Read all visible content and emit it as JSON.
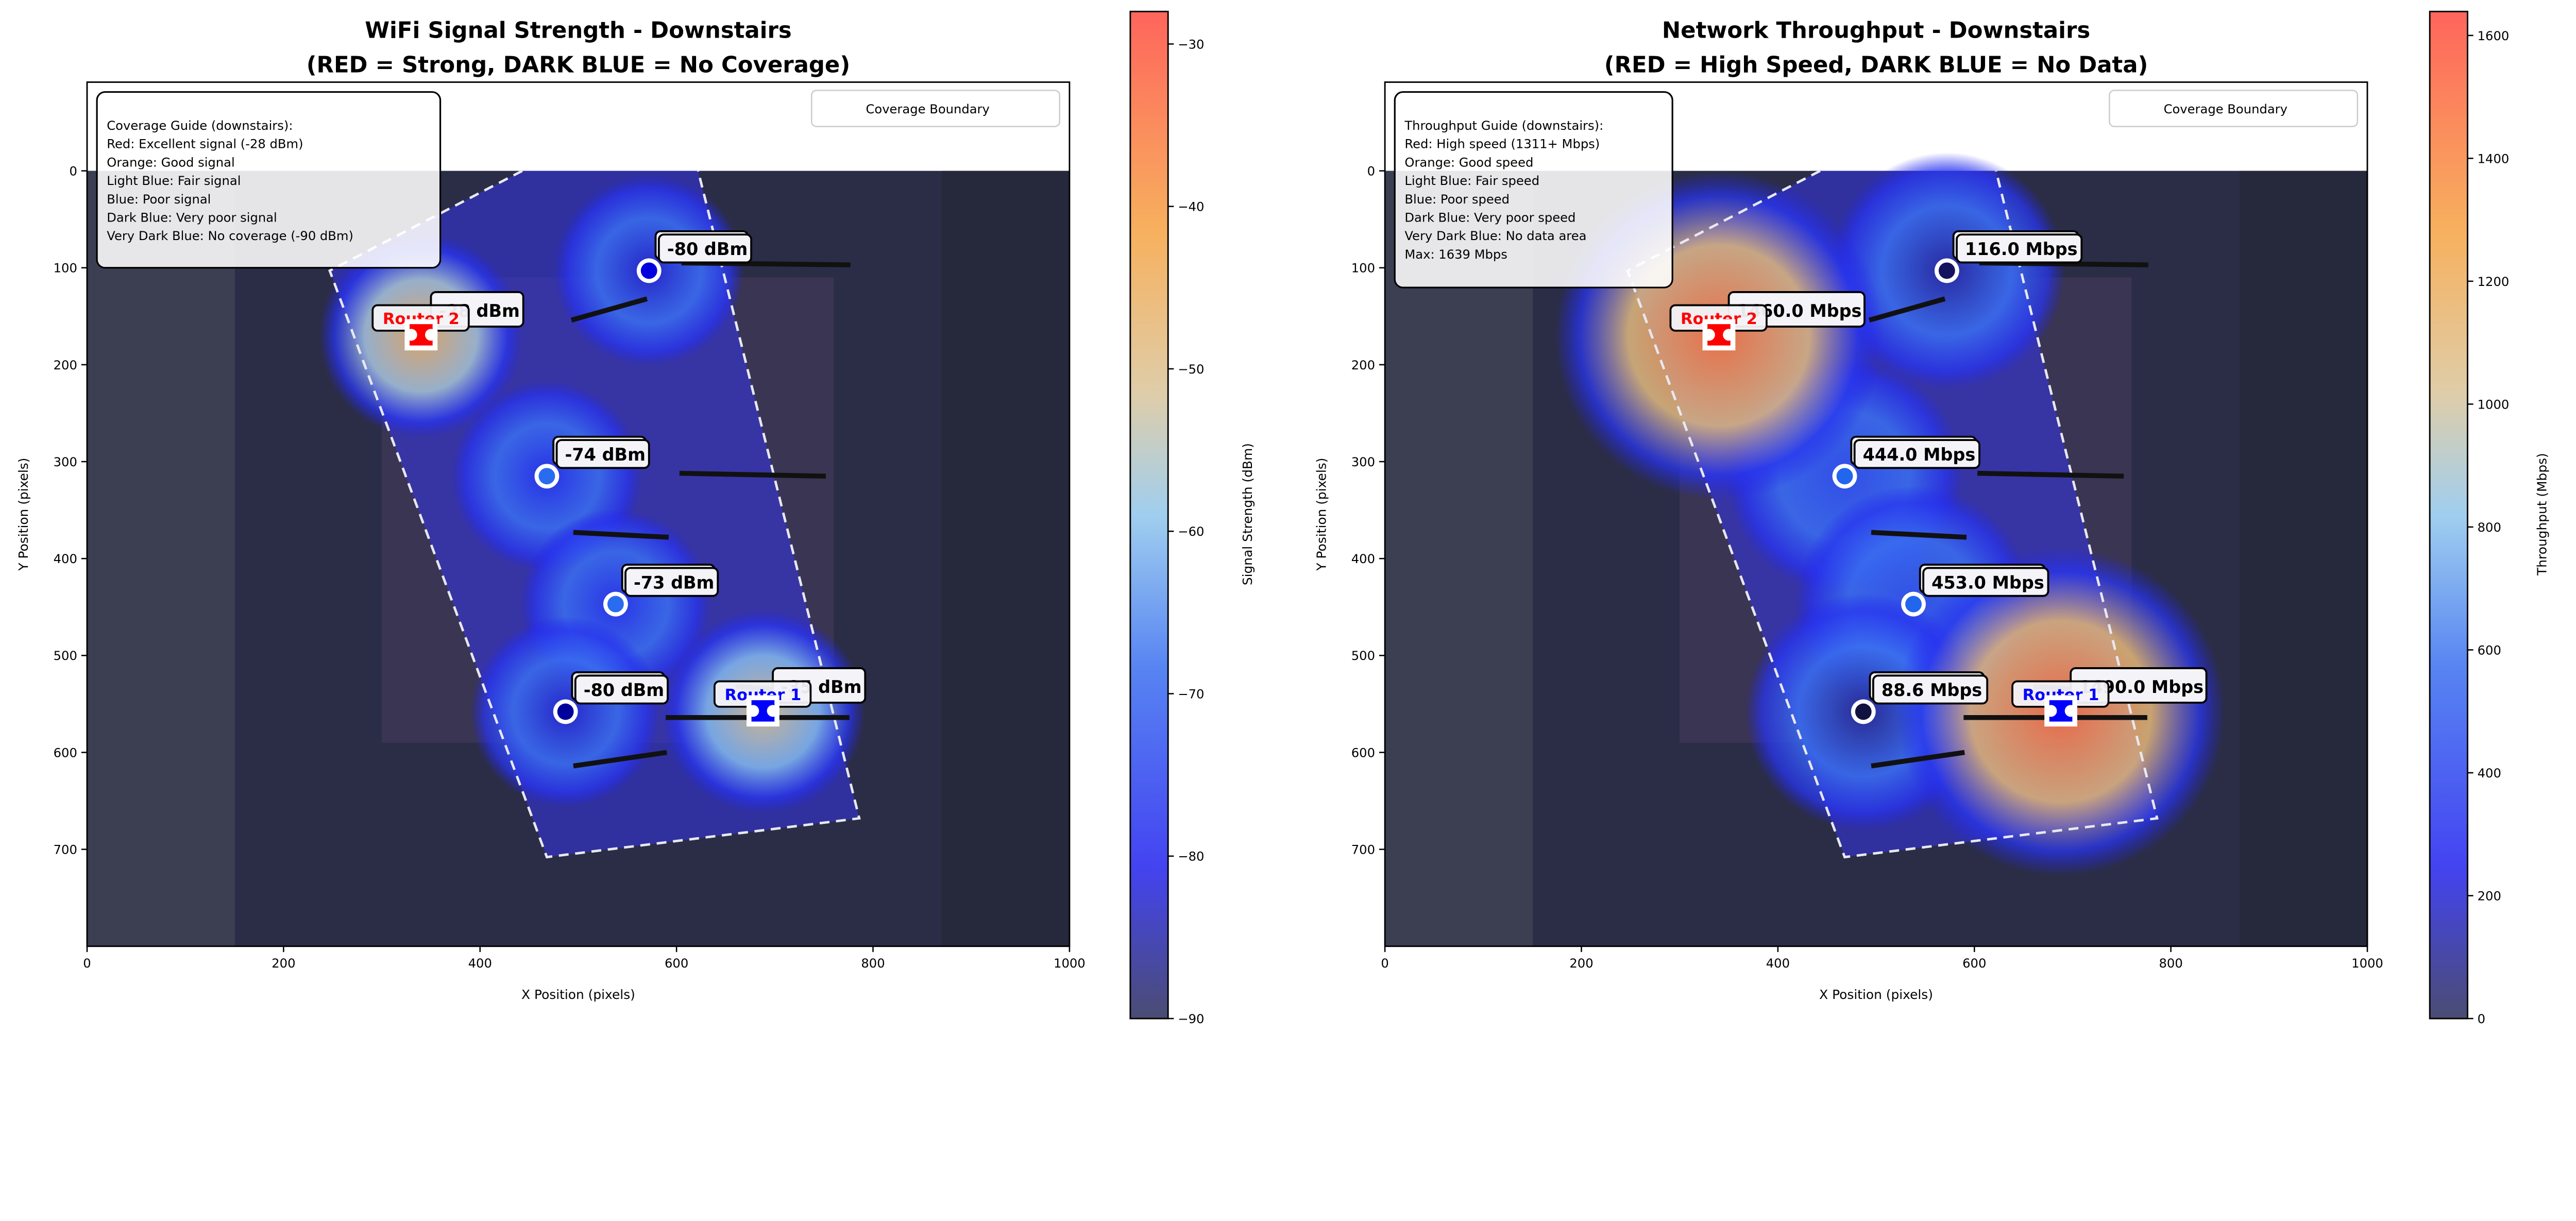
{
  "chart_data": [
    {
      "type": "heatmap",
      "key": "signal",
      "title_line1": "WiFi Signal Strength - Downstairs",
      "title_line2": "(RED = Strong, DARK BLUE = No Coverage)",
      "xlabel": "X Position (pixels)",
      "ylabel": "Y Position (pixels)",
      "xlim": [
        0,
        1000
      ],
      "ylim": [
        800,
        -92
      ],
      "xticks": [
        "0",
        "200",
        "400",
        "600",
        "800",
        "1000"
      ],
      "yticks": [
        "0",
        "100",
        "200",
        "300",
        "400",
        "500",
        "600",
        "700"
      ],
      "colorbar": {
        "label": "Signal Strength (dBm)",
        "range": [
          -90,
          -28
        ],
        "ticks": [
          "-30",
          "-40",
          "-50",
          "-60",
          "-70",
          "-80",
          "-90"
        ]
      },
      "legend": {
        "label": "Coverage Boundary",
        "position": "top-right"
      },
      "guide": [
        "Coverage Guide (downstairs):",
        "Red: Excellent signal (-28 dBm)",
        "Orange: Good signal",
        "Light Blue: Fair signal",
        "Blue: Poor signal",
        "Dark Blue: Very poor signal",
        "Very Dark Blue: No coverage (-90 dBm)"
      ],
      "points": [
        {
          "x": 572,
          "y": 103,
          "value": -80,
          "label": "-80 dBm",
          "color": "#0000dd"
        },
        {
          "x": 468,
          "y": 315,
          "value": -74,
          "label": "-74 dBm",
          "color": "#2a6cf0"
        },
        {
          "x": 538,
          "y": 447,
          "value": -73,
          "label": "-73 dBm",
          "color": "#2a6cf0"
        },
        {
          "x": 487,
          "y": 558,
          "value": -80,
          "label": "-80 dBm",
          "color": "#00009a"
        }
      ],
      "routers": [
        {
          "name": "Router 2",
          "x": 340,
          "y": 170,
          "value": -28,
          "label": "-28 dBm",
          "color": "#ff0000"
        },
        {
          "name": "Router 1",
          "x": 688,
          "y": 558,
          "value": -35,
          "label": "-35 dBm",
          "color": "#0000ff"
        }
      ]
    },
    {
      "type": "heatmap",
      "key": "throughput",
      "title_line1": "Network Throughput - Downstairs",
      "title_line2": "(RED = High Speed, DARK BLUE = No Data)",
      "xlabel": "X Position (pixels)",
      "ylabel": "Y Position (pixels)",
      "xlim": [
        0,
        1000
      ],
      "ylim": [
        800,
        -92
      ],
      "xticks": [
        "0",
        "200",
        "400",
        "600",
        "800",
        "1000"
      ],
      "yticks": [
        "0",
        "100",
        "200",
        "300",
        "400",
        "500",
        "600",
        "700"
      ],
      "colorbar": {
        "label": "Throughput (Mbps)",
        "range": [
          0,
          1639
        ],
        "ticks": [
          "0",
          "200",
          "400",
          "600",
          "800",
          "1000",
          "1200",
          "1400",
          "1600"
        ]
      },
      "legend": {
        "label": "Coverage Boundary",
        "position": "top-right"
      },
      "guide": [
        "Throughput Guide (downstairs):",
        "Red: High speed (1311+ Mbps)",
        "Orange: Good speed",
        "Light Blue: Fair speed",
        "Blue: Poor speed",
        "Dark Blue: Very poor speed",
        "Very Dark Blue: No data area",
        "Max: 1639 Mbps"
      ],
      "points": [
        {
          "x": 572,
          "y": 103,
          "value": 116.0,
          "label": "116.0 Mbps",
          "color": "#14145e"
        },
        {
          "x": 468,
          "y": 315,
          "value": 444.0,
          "label": "444.0 Mbps",
          "color": "#2266ee"
        },
        {
          "x": 538,
          "y": 447,
          "value": 453.0,
          "label": "453.0 Mbps",
          "color": "#2266ee"
        },
        {
          "x": 487,
          "y": 558,
          "value": 88.6,
          "label": "88.6 Mbps",
          "color": "#121240"
        }
      ],
      "routers": [
        {
          "name": "Router 2",
          "x": 340,
          "y": 170,
          "value": 1460.0,
          "label": "1460.0 Mbps",
          "color": "#ff0000"
        },
        {
          "name": "Router 1",
          "x": 688,
          "y": 558,
          "value": 1490.0,
          "label": "1490.0 Mbps",
          "color": "#0000ff"
        }
      ]
    }
  ]
}
